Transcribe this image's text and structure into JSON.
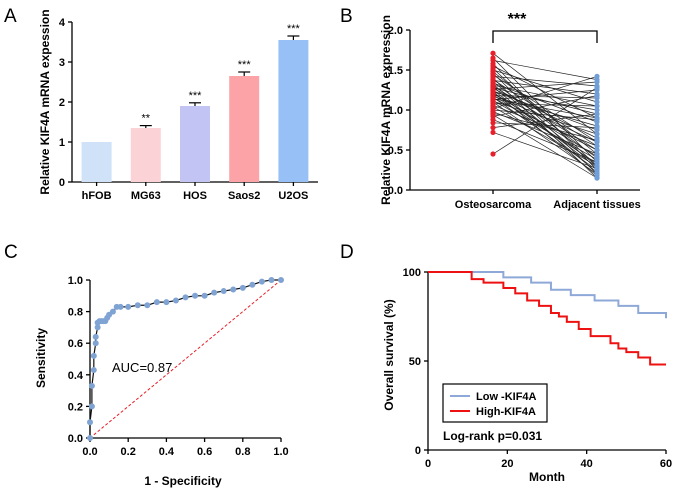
{
  "panel_labels": [
    "A",
    "B",
    "C",
    "D"
  ],
  "chart_data": [
    {
      "panel": "A",
      "type": "bar",
      "title": "",
      "categories": [
        "hFOB",
        "MG63",
        "HOS",
        "Saos2",
        "U2OS"
      ],
      "values": [
        1.0,
        1.35,
        1.9,
        2.65,
        3.55
      ],
      "errors": [
        0.0,
        0.06,
        0.08,
        0.1,
        0.1
      ],
      "significance": [
        "",
        "**",
        "***",
        "***",
        "***"
      ],
      "colors": [
        "#cfe2f7",
        "#fbd3d7",
        "#c2c4f3",
        "#fba3a7",
        "#97c1f6"
      ],
      "xlabel": "",
      "ylabel": "Relative KIF4A mRNA expession",
      "ylim": [
        0,
        4
      ],
      "yticks": [
        "0",
        "1",
        "2",
        "3",
        "4"
      ]
    },
    {
      "panel": "B",
      "type": "scatter",
      "title": "",
      "categories": [
        "Osteosarcoma",
        "Adjacent tissues"
      ],
      "osteosarcoma": [
        1.71,
        1.65,
        1.62,
        1.58,
        1.55,
        1.52,
        1.5,
        1.48,
        1.46,
        1.44,
        1.42,
        1.4,
        1.38,
        1.37,
        1.35,
        1.34,
        1.32,
        1.31,
        1.3,
        1.29,
        1.28,
        1.27,
        1.26,
        1.25,
        1.24,
        1.23,
        1.22,
        1.21,
        1.2,
        1.19,
        1.18,
        1.17,
        1.16,
        1.15,
        1.14,
        1.13,
        1.12,
        1.11,
        1.1,
        1.08,
        1.06,
        1.04,
        1.02,
        1.0,
        0.98,
        0.96,
        0.94,
        0.92,
        0.88,
        0.84,
        0.78,
        0.72,
        0.45
      ],
      "adjacent": [
        0.7,
        0.35,
        1.38,
        0.25,
        0.9,
        0.3,
        1.1,
        0.45,
        0.2,
        0.6,
        1.3,
        0.15,
        0.55,
        1.2,
        0.4,
        0.85,
        0.3,
        1.05,
        0.5,
        0.22,
        0.95,
        0.65,
        1.35,
        0.28,
        0.75,
        0.18,
        1.0,
        0.42,
        0.6,
        0.33,
        1.15,
        0.8,
        0.25,
        0.5,
        0.9,
        1.25,
        0.38,
        0.7,
        0.2,
        1.05,
        0.55,
        0.3,
        1.42,
        0.88,
        0.45,
        0.62,
        0.15,
        1.18,
        0.35,
        0.78,
        0.95,
        0.27,
        1.28
      ],
      "significance": "***",
      "xlabel": "",
      "ylabel": "Relative KIF4A mRNA expression",
      "ylim": [
        0,
        2.0
      ],
      "yticks": [
        "0.0",
        "0.5",
        "1.0",
        "1.5",
        "2.0"
      ]
    },
    {
      "panel": "C",
      "type": "line",
      "title": "",
      "series": [
        {
          "name": "ROC",
          "x": [
            0,
            0,
            0.01,
            0.01,
            0.02,
            0.02,
            0.03,
            0.03,
            0.04,
            0.04,
            0.05,
            0.06,
            0.07,
            0.08,
            0.09,
            0.1,
            0.12,
            0.14,
            0.16,
            0.2,
            0.25,
            0.3,
            0.35,
            0.4,
            0.45,
            0.5,
            0.55,
            0.6,
            0.65,
            0.7,
            0.75,
            0.8,
            0.85,
            0.9,
            0.95,
            1.0
          ],
          "y": [
            0,
            0.1,
            0.2,
            0.33,
            0.43,
            0.52,
            0.6,
            0.64,
            0.7,
            0.73,
            0.74,
            0.74,
            0.74,
            0.74,
            0.76,
            0.78,
            0.8,
            0.83,
            0.83,
            0.83,
            0.84,
            0.84,
            0.86,
            0.86,
            0.87,
            0.89,
            0.9,
            0.9,
            0.92,
            0.93,
            0.94,
            0.95,
            0.97,
            0.99,
            1.0,
            1.0
          ]
        },
        {
          "name": "reference",
          "x": [
            0,
            1.0
          ],
          "y": [
            0,
            1.0
          ]
        }
      ],
      "annotation": "AUC=0.87",
      "xlabel": "1 - Specificity",
      "ylabel": "Sensitivity",
      "xlim": [
        0,
        1.0
      ],
      "ylim": [
        0,
        1.0
      ],
      "ticks": [
        "0.0",
        "0.2",
        "0.4",
        "0.6",
        "0.8",
        "1.0"
      ]
    },
    {
      "panel": "D",
      "type": "line",
      "title": "",
      "series": [
        {
          "name": "Low -KIF4A",
          "color": "#8ea9d8",
          "x": [
            0,
            19,
            26,
            31,
            36,
            42,
            48,
            53,
            60
          ],
          "y": [
            100,
            97,
            94,
            90,
            87,
            84,
            81,
            77,
            74
          ]
        },
        {
          "name": "High-KIF4A",
          "color": "#ee1111",
          "x": [
            0,
            11,
            14,
            19,
            22,
            25,
            28,
            31,
            33,
            35,
            38,
            41,
            46,
            48,
            50,
            53,
            56,
            60
          ],
          "y": [
            100,
            96,
            94,
            91,
            88,
            84,
            81,
            77,
            75,
            72,
            68,
            64,
            60,
            57,
            55,
            52,
            48,
            48
          ]
        }
      ],
      "annotation": "Log-rank p=0.031",
      "xlabel": "Month",
      "ylabel": "Overall survival (%)",
      "xlim": [
        0,
        60
      ],
      "ylim": [
        0,
        100
      ],
      "xticks": [
        "0",
        "20",
        "40",
        "60"
      ],
      "yticks": [
        "0",
        "50",
        "100"
      ]
    }
  ]
}
